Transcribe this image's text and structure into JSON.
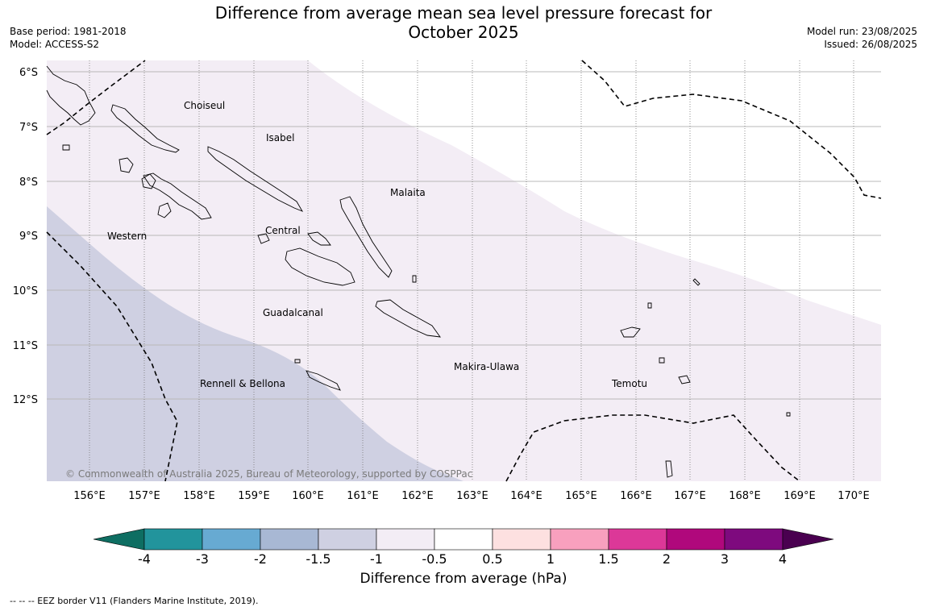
{
  "title": "Difference from average mean sea level pressure forecast for October 2025",
  "meta_left": {
    "base_period": "Base period: 1981-2018",
    "model": "Model: ACCESS-S2"
  },
  "meta_right": {
    "model_run": "Model run: 23/08/2025",
    "issued": "Issued: 26/08/2025"
  },
  "map": {
    "lat_labels": [
      "6°S",
      "7°S",
      "8°S",
      "9°S",
      "10°S",
      "11°S",
      "12°S"
    ],
    "lon_labels": [
      "156°E",
      "157°E",
      "158°E",
      "159°E",
      "160°E",
      "161°E",
      "162°E",
      "163°E",
      "164°E",
      "165°E",
      "166°E",
      "167°E",
      "168°E",
      "169°E",
      "170°E"
    ],
    "regions": [
      {
        "id": "choiseul",
        "label": "Choiseul"
      },
      {
        "id": "isabel",
        "label": "Isabel"
      },
      {
        "id": "malaita",
        "label": "Malaita"
      },
      {
        "id": "western",
        "label": "Western"
      },
      {
        "id": "central",
        "label": "Central"
      },
      {
        "id": "guadalcanal",
        "label": "Guadalcanal"
      },
      {
        "id": "makira",
        "label": "Makira-Ulawa"
      },
      {
        "id": "rennell",
        "label": "Rennell & Bellona"
      },
      {
        "id": "temotu",
        "label": "Temotu"
      }
    ],
    "copyright": "© Commonwealth of Australia 2025, Bureau of Meteorology, supported by COSPPac",
    "colors": {
      "band_-1.5_-1": "#cfd0e2",
      "band_-1_-0.5": "#f3edf5",
      "band_-0.5_0.5": "#ffffff"
    }
  },
  "colorbar": {
    "ticks": [
      "-4",
      "-3",
      "-2",
      "-1.5",
      "-1",
      "-0.5",
      "0.5",
      "1",
      "1.5",
      "2",
      "3",
      "4"
    ],
    "colors": [
      "#0e6e62",
      "#22949c",
      "#67aad2",
      "#a8b8d4",
      "#cfd0e2",
      "#f3edf5",
      "#ffffff",
      "#fde0e0",
      "#f8a0be",
      "#dc3898",
      "#b0087c",
      "#7e0a7e",
      "#4a0050"
    ],
    "label": "Difference from average (hPa)"
  },
  "footnote": "--  --  -- EEZ border V11 (Flanders Marine Institute, 2019)."
}
